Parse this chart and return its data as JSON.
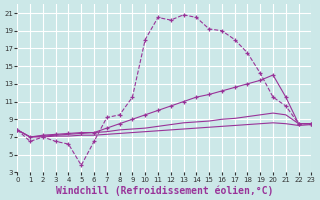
{
  "background_color": "#cce8e8",
  "grid_color": "#ffffff",
  "line_color": "#993399",
  "x_label": "Windchill (Refroidissement éolien,°C)",
  "xlim": [
    0,
    23
  ],
  "ylim": [
    3,
    22
  ],
  "yticks": [
    3,
    5,
    7,
    9,
    11,
    13,
    15,
    17,
    19,
    21
  ],
  "xticks": [
    0,
    1,
    2,
    3,
    4,
    5,
    6,
    7,
    8,
    9,
    10,
    11,
    12,
    13,
    14,
    15,
    16,
    17,
    18,
    19,
    20,
    21,
    22,
    23
  ],
  "line1_x": [
    0,
    1,
    2,
    3,
    4,
    5,
    6,
    7,
    8,
    9,
    10,
    11,
    12,
    13,
    14,
    15,
    16,
    17,
    18,
    19,
    20,
    21,
    22,
    23
  ],
  "line1_y": [
    7.8,
    6.5,
    7.0,
    6.5,
    6.2,
    3.8,
    6.5,
    9.2,
    9.5,
    11.5,
    18.0,
    20.5,
    20.2,
    20.8,
    20.5,
    19.2,
    19.0,
    18.0,
    16.5,
    14.2,
    11.5,
    10.5,
    8.5,
    8.5
  ],
  "line2_x": [
    0,
    1,
    2,
    3,
    4,
    5,
    6,
    7,
    8,
    9,
    10,
    11,
    12,
    13,
    14,
    15,
    16,
    17,
    18,
    19,
    20,
    21,
    22,
    23
  ],
  "line2_y": [
    7.8,
    7.0,
    7.2,
    7.3,
    7.4,
    7.5,
    7.5,
    8.0,
    8.5,
    9.0,
    9.5,
    10.0,
    10.5,
    11.0,
    11.5,
    11.8,
    12.2,
    12.6,
    13.0,
    13.4,
    14.0,
    11.5,
    8.5,
    8.5
  ],
  "line3_x": [
    0,
    1,
    2,
    3,
    4,
    5,
    6,
    7,
    8,
    9,
    10,
    11,
    12,
    13,
    14,
    15,
    16,
    17,
    18,
    19,
    20,
    21,
    22,
    23
  ],
  "line3_y": [
    7.8,
    7.0,
    7.1,
    7.2,
    7.3,
    7.4,
    7.5,
    7.6,
    7.8,
    7.9,
    8.0,
    8.2,
    8.4,
    8.6,
    8.7,
    8.8,
    9.0,
    9.1,
    9.3,
    9.5,
    9.7,
    9.5,
    8.5,
    8.5
  ],
  "line4_x": [
    0,
    1,
    2,
    3,
    4,
    5,
    6,
    7,
    8,
    9,
    10,
    11,
    12,
    13,
    14,
    15,
    16,
    17,
    18,
    19,
    20,
    21,
    22,
    23
  ],
  "line4_y": [
    7.8,
    7.0,
    7.0,
    7.1,
    7.1,
    7.2,
    7.2,
    7.3,
    7.4,
    7.5,
    7.6,
    7.7,
    7.8,
    7.9,
    8.0,
    8.1,
    8.2,
    8.3,
    8.4,
    8.5,
    8.6,
    8.5,
    8.3,
    8.4
  ]
}
